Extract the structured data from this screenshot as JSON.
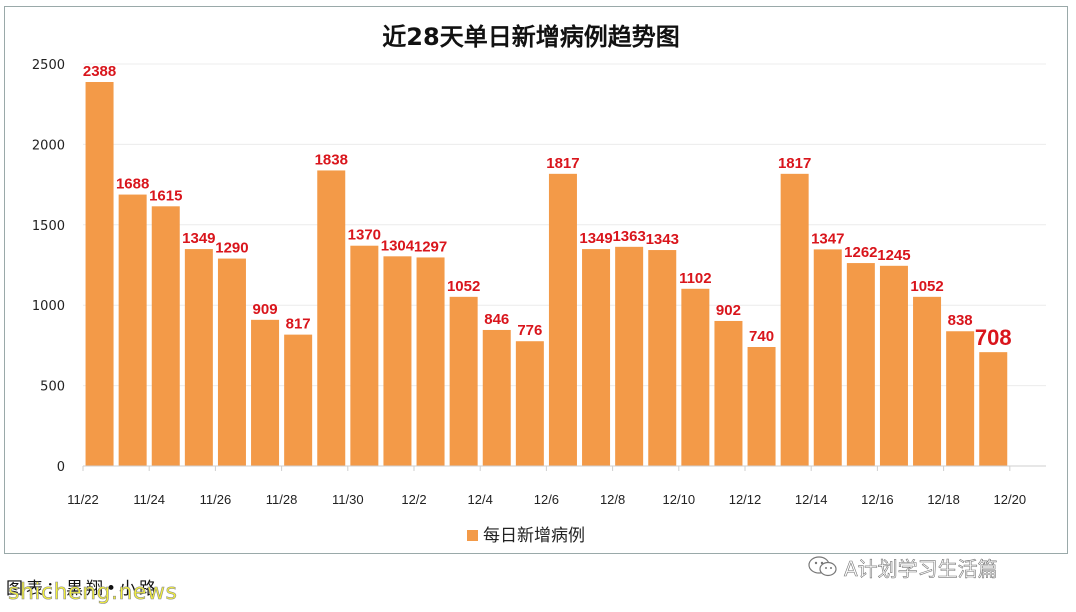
{
  "chart_data": {
    "type": "bar",
    "title": "近28天单日新增病例趋势图",
    "series_name": "每日新增病例",
    "bar_color": "#f39a48",
    "label_color": "#d9151c",
    "highlight_label_color": "#d9151c",
    "ylim": [
      0,
      2500
    ],
    "yticks": [
      "0",
      "500",
      "1000",
      "1500",
      "2000",
      "2500"
    ],
    "xticks": [
      "11/22",
      "11/24",
      "11/26",
      "11/28",
      "11/30",
      "12/2",
      "12/4",
      "12/6",
      "12/8",
      "12/10",
      "12/12",
      "12/14",
      "12/16",
      "12/18",
      "12/20"
    ],
    "values": [
      2388,
      1688,
      1615,
      1349,
      1290,
      909,
      817,
      1838,
      1370,
      1304,
      1297,
      1052,
      846,
      776,
      1817,
      1349,
      1363,
      1343,
      1102,
      902,
      740,
      1817,
      1347,
      1262,
      1245,
      1052,
      838,
      708
    ],
    "highlight_index": 27,
    "legend_position": "bottom",
    "grid": "horizontal"
  },
  "caption": "图表：黒翔•小路",
  "watermark_site": "shicheng.news",
  "watermark_account": "A计划学习生活篇",
  "watermark_icon": "wechat-icon"
}
